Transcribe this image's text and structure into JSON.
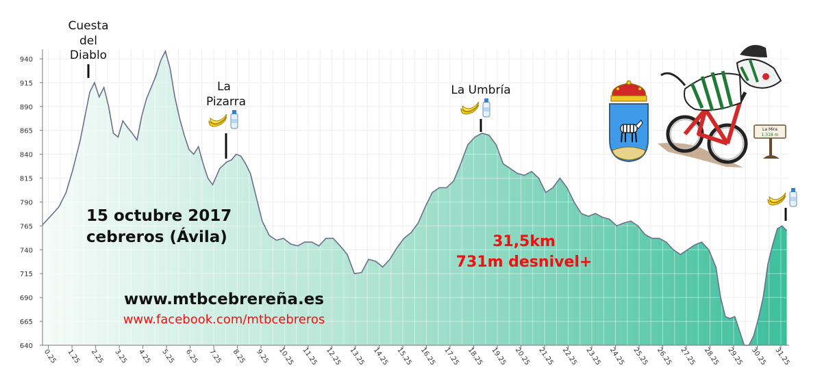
{
  "chart_data": {
    "type": "area",
    "title": "",
    "xlabel": "",
    "ylabel": "",
    "xlim": [
      0,
      31.6
    ],
    "ylim": [
      640,
      950
    ],
    "grid": true,
    "y_ticks": [
      640,
      665,
      690,
      715,
      740,
      765,
      790,
      815,
      840,
      865,
      890,
      915,
      940
    ],
    "x_ticks": [
      "0.25",
      "1.25",
      "2.25",
      "3.25",
      "4.25",
      "5.25",
      "6.25",
      "7.25",
      "8.25",
      "9.25",
      "10.25",
      "11.25",
      "12.25",
      "13.25",
      "14.25",
      "15.25",
      "16.25",
      "17.25",
      "18.25",
      "19.25",
      "20.25",
      "21.25",
      "22.25",
      "23.25",
      "24.25",
      "25.25",
      "26.25",
      "27.25",
      "28.25",
      "29.25",
      "30.25",
      "31.25"
    ],
    "x": [
      0,
      0.3,
      0.7,
      1.0,
      1.3,
      1.6,
      1.8,
      2.0,
      2.2,
      2.4,
      2.6,
      2.8,
      3.0,
      3.2,
      3.4,
      3.6,
      3.8,
      4.0,
      4.2,
      4.4,
      4.6,
      4.8,
      5.0,
      5.2,
      5.4,
      5.6,
      5.8,
      6.0,
      6.2,
      6.4,
      6.6,
      6.8,
      7.0,
      7.2,
      7.5,
      7.8,
      8.0,
      8.2,
      8.4,
      8.6,
      8.8,
      9.0,
      9.3,
      9.6,
      9.9,
      10.2,
      10.5,
      10.8,
      11.1,
      11.4,
      11.7,
      12.0,
      12.3,
      12.6,
      12.9,
      13.2,
      13.5,
      13.8,
      14.1,
      14.4,
      14.7,
      15.0,
      15.3,
      15.6,
      15.9,
      16.2,
      16.5,
      16.8,
      17.1,
      17.4,
      17.7,
      18.0,
      18.3,
      18.6,
      18.9,
      19.2,
      19.5,
      19.8,
      20.1,
      20.4,
      20.7,
      21.0,
      21.3,
      21.6,
      21.9,
      22.2,
      22.5,
      22.8,
      23.1,
      23.4,
      23.7,
      24.0,
      24.3,
      24.6,
      24.9,
      25.2,
      25.5,
      25.8,
      26.1,
      26.4,
      26.7,
      27.0,
      27.3,
      27.6,
      27.9,
      28.2,
      28.5,
      28.7,
      28.9,
      29.1,
      29.3,
      29.5,
      29.7,
      29.9,
      30.1,
      30.3,
      30.5,
      30.7,
      30.9,
      31.1,
      31.3,
      31.5
    ],
    "series": [
      {
        "values": [
          766,
          774,
          785,
          800,
          825,
          855,
          880,
          905,
          915,
          900,
          910,
          890,
          862,
          858,
          875,
          868,
          862,
          855,
          880,
          898,
          910,
          922,
          938,
          948,
          930,
          900,
          878,
          860,
          845,
          840,
          848,
          830,
          815,
          808,
          825,
          832,
          834,
          840,
          838,
          830,
          820,
          800,
          770,
          755,
          750,
          752,
          746,
          744,
          748,
          748,
          744,
          752,
          752,
          744,
          735,
          715,
          716,
          730,
          728,
          722,
          730,
          742,
          752,
          758,
          768,
          785,
          800,
          805,
          805,
          812,
          830,
          850,
          858,
          862,
          860,
          850,
          830,
          825,
          820,
          818,
          822,
          815,
          800,
          805,
          815,
          805,
          790,
          778,
          775,
          778,
          774,
          772,
          765,
          768,
          770,
          765,
          756,
          752,
          752,
          748,
          740,
          735,
          740,
          745,
          748,
          740,
          722,
          690,
          670,
          668,
          670,
          655,
          640,
          640,
          650,
          668,
          690,
          725,
          745,
          762,
          765,
          760
        ]
      }
    ],
    "annotations": {
      "cuesta": [
        "Cuesta",
        "del",
        "Diablo"
      ],
      "pizarra": [
        "La",
        "Pizarra"
      ],
      "umbria": "La Umbría",
      "date_line1": "15 octubre 2017",
      "date_line2": "cebreros (Ávila)",
      "distance": "31,5km",
      "elevation_gain": "731m desnivel+",
      "website": "www.mtbcebrereña.es",
      "facebook": "www.facebook.com/mtbcebreros",
      "sign_line1": "La Mira",
      "sign_line2": "1.318 m"
    },
    "colors": {
      "gradient_start": "#f5fbf8",
      "gradient_end": "#3dbf9c",
      "outline": "#6a6f8c",
      "grid": "#e2e2e2",
      "red_text": "#ee1111"
    }
  }
}
